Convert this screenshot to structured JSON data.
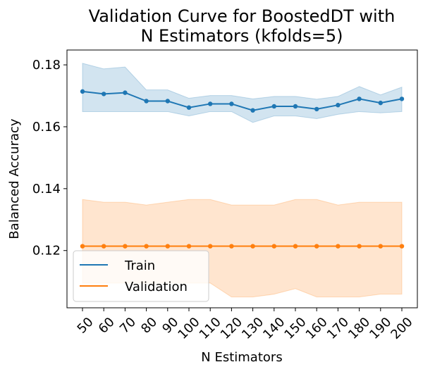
{
  "chart_data": {
    "type": "line",
    "title_lines": [
      "Validation Curve for BoostedDT with",
      "N Estimators (kfolds=5)"
    ],
    "xlabel": "N Estimators",
    "ylabel": "Balanced Accuracy",
    "categories": [
      "50",
      "60",
      "70",
      "80",
      "90",
      "100",
      "110",
      "120",
      "130",
      "140",
      "150",
      "160",
      "170",
      "180",
      "190",
      "200"
    ],
    "ylim": [
      0.1015,
      0.1848
    ],
    "yticks": [
      0.12,
      0.14,
      0.16,
      0.18
    ],
    "ytick_labels": [
      "0.12",
      "0.14",
      "0.16",
      "0.18"
    ],
    "grid": false,
    "legend_position": "lower-left",
    "series": [
      {
        "name": "Train",
        "color": "#1f77b4",
        "band_color": "#1f77b4",
        "values": [
          0.1714,
          0.1706,
          0.171,
          0.1683,
          0.1683,
          0.1662,
          0.1674,
          0.1674,
          0.1653,
          0.1666,
          0.1666,
          0.1657,
          0.167,
          0.169,
          0.1677,
          0.169
        ],
        "upper": [
          0.1805,
          0.1787,
          0.1793,
          0.1719,
          0.1719,
          0.1692,
          0.1701,
          0.1701,
          0.169,
          0.1698,
          0.1698,
          0.1689,
          0.1698,
          0.173,
          0.1703,
          0.1728
        ],
        "lower": [
          0.1649,
          0.1649,
          0.1649,
          0.1649,
          0.1649,
          0.1635,
          0.1649,
          0.1649,
          0.1614,
          0.1635,
          0.1635,
          0.1626,
          0.164,
          0.1649,
          0.1645,
          0.1649
        ]
      },
      {
        "name": "Validation",
        "color": "#ff7f0e",
        "band_color": "#ff7f0e",
        "values": [
          0.1214,
          0.1214,
          0.1214,
          0.1214,
          0.1214,
          0.1214,
          0.1214,
          0.1214,
          0.1214,
          0.1214,
          0.1214,
          0.1214,
          0.1214,
          0.1214,
          0.1214,
          0.1214
        ],
        "upper": [
          0.1365,
          0.1356,
          0.1356,
          0.1347,
          0.1356,
          0.1365,
          0.1365,
          0.1347,
          0.1347,
          0.1347,
          0.1365,
          0.1365,
          0.1347,
          0.1356,
          0.1356,
          0.1356
        ],
        "lower": [
          0.1095,
          0.1095,
          0.1095,
          0.1095,
          0.1095,
          0.1095,
          0.1095,
          0.105,
          0.105,
          0.1059,
          0.1077,
          0.105,
          0.105,
          0.105,
          0.1059,
          0.1059
        ]
      }
    ]
  }
}
